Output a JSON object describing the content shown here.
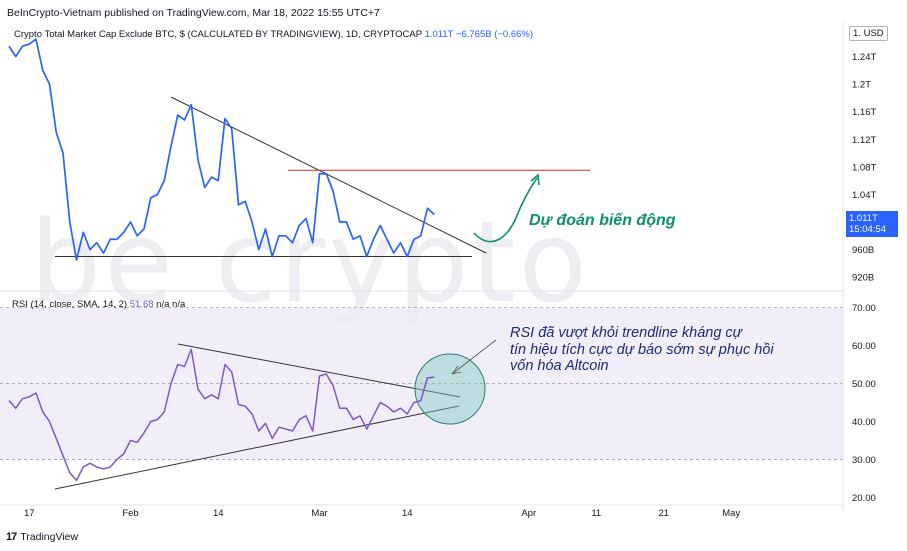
{
  "header": {
    "publisher_text": "BeInCrypto-Vietnam published on TradingView.com, Mar 18, 2022 15:55 UTC+7"
  },
  "main_legend": {
    "title": "Crypto Total Market Cap Exclude BTC, $ (CALCULATED BY TRADINGVIEW), 1D, CRYPTOCAP",
    "last_value": "1.011T",
    "change": "−6.765B (−0.66%)"
  },
  "currency_box": "USD",
  "price_axis_top_label": "1.",
  "price_tag": {
    "value": "1.011T",
    "countdown": "15:04:54"
  },
  "rsi_legend": {
    "label": "RSI (14, close, SMA, 14, 2)",
    "value": "51.68",
    "na1": "n/a",
    "na2": "n/a"
  },
  "watermark": "be  crypto",
  "annotations": {
    "forecast": "Dự đoán biến động",
    "rsi_line1": "RSI đã vượt khỏi trendline kháng cự",
    "rsi_line2": "tín hiệu tích cực dự báo sớm sự phục hồi",
    "rsi_line3": "vốn hóa Altcoin"
  },
  "footer": {
    "brand": "TradingView",
    "logo_glyph": "17"
  },
  "colors": {
    "price_line": "#2962ff",
    "rsi_line": "#7e57c2",
    "rsi_band_fill": "#ede7f6",
    "resistance_line": "#d32f2f",
    "trendline": "#333333",
    "forecast_arrow": "#0e8f6f"
  },
  "chart_data": [
    {
      "type": "line",
      "title": "Crypto Total Market Cap Exclude BTC, $ (CALCULATED BY TRADINGVIEW), 1D, CRYPTOCAP",
      "y_tick_labels": [
        "1.24T",
        "1.2T",
        "1.16T",
        "1.12T",
        "1.08T",
        "1.04T",
        "960B",
        "920B"
      ],
      "y_ticks": [
        1.24,
        1.2,
        1.16,
        1.12,
        1.08,
        1.04,
        0.96,
        0.92
      ],
      "ylim": [
        0.9,
        1.29
      ],
      "x_tick_labels": [
        "17",
        "Feb",
        "14",
        "Mar",
        "14",
        "Apr",
        "11",
        "21",
        "May"
      ],
      "grid": false,
      "series": [
        {
          "values_units": "trillion USD",
          "dates": [
            "2022-01-14",
            "2022-01-15",
            "2022-01-16",
            "2022-01-17",
            "2022-01-18",
            "2022-01-19",
            "2022-01-20",
            "2022-01-21",
            "2022-01-22",
            "2022-01-23",
            "2022-01-24",
            "2022-01-25",
            "2022-01-26",
            "2022-01-27",
            "2022-01-28",
            "2022-01-29",
            "2022-01-30",
            "2022-01-31",
            "2022-02-01",
            "2022-02-02",
            "2022-02-03",
            "2022-02-04",
            "2022-02-05",
            "2022-02-06",
            "2022-02-07",
            "2022-02-08",
            "2022-02-09",
            "2022-02-10",
            "2022-02-11",
            "2022-02-12",
            "2022-02-13",
            "2022-02-14",
            "2022-02-15",
            "2022-02-16",
            "2022-02-17",
            "2022-02-18",
            "2022-02-19",
            "2022-02-20",
            "2022-02-21",
            "2022-02-22",
            "2022-02-23",
            "2022-02-24",
            "2022-02-25",
            "2022-02-26",
            "2022-02-27",
            "2022-02-28",
            "2022-03-01",
            "2022-03-02",
            "2022-03-03",
            "2022-03-04",
            "2022-03-05",
            "2022-03-06",
            "2022-03-07",
            "2022-03-08",
            "2022-03-09",
            "2022-03-10",
            "2022-03-11",
            "2022-03-12",
            "2022-03-13",
            "2022-03-14",
            "2022-03-15",
            "2022-03-16",
            "2022-03-17",
            "2022-03-18"
          ],
          "values": [
            1.255,
            1.24,
            1.255,
            1.258,
            1.265,
            1.22,
            1.2,
            1.13,
            1.1,
            1.0,
            0.945,
            0.985,
            0.96,
            0.97,
            0.955,
            0.975,
            0.975,
            0.985,
            1.0,
            0.98,
            0.99,
            1.035,
            1.04,
            1.06,
            1.11,
            1.155,
            1.148,
            1.17,
            1.09,
            1.05,
            1.065,
            1.06,
            1.15,
            1.135,
            1.025,
            1.03,
            1.0,
            0.96,
            0.99,
            0.95,
            0.98,
            0.98,
            0.97,
            0.995,
            1.005,
            0.97,
            1.07,
            1.07,
            1.045,
            1.0,
            1.0,
            0.975,
            0.98,
            0.95,
            0.975,
            0.995,
            0.975,
            0.955,
            0.97,
            0.95,
            0.975,
            0.98,
            1.02,
            1.011
          ]
        }
      ],
      "resistance_level": 1.075,
      "support_level": 0.95
    },
    {
      "type": "line",
      "title": "RSI (14, close, SMA, 14, 2)",
      "y_tick_labels": [
        "70.00",
        "60.00",
        "50.00",
        "40.00",
        "30.00",
        "20.00"
      ],
      "y_ticks": [
        70,
        60,
        50,
        40,
        30,
        20
      ],
      "ylim": [
        18,
        72
      ],
      "band": [
        30,
        70
      ],
      "midline": 50,
      "grid": false,
      "series": [
        {
          "name": "RSI",
          "dates": [
            "2022-01-14",
            "2022-01-15",
            "2022-01-16",
            "2022-01-17",
            "2022-01-18",
            "2022-01-19",
            "2022-01-20",
            "2022-01-21",
            "2022-01-22",
            "2022-01-23",
            "2022-01-24",
            "2022-01-25",
            "2022-01-26",
            "2022-01-27",
            "2022-01-28",
            "2022-01-29",
            "2022-01-30",
            "2022-01-31",
            "2022-02-01",
            "2022-02-02",
            "2022-02-03",
            "2022-02-04",
            "2022-02-05",
            "2022-02-06",
            "2022-02-07",
            "2022-02-08",
            "2022-02-09",
            "2022-02-10",
            "2022-02-11",
            "2022-02-12",
            "2022-02-13",
            "2022-02-14",
            "2022-02-15",
            "2022-02-16",
            "2022-02-17",
            "2022-02-18",
            "2022-02-19",
            "2022-02-20",
            "2022-02-21",
            "2022-02-22",
            "2022-02-23",
            "2022-02-24",
            "2022-02-25",
            "2022-02-26",
            "2022-02-27",
            "2022-02-28",
            "2022-03-01",
            "2022-03-02",
            "2022-03-03",
            "2022-03-04",
            "2022-03-05",
            "2022-03-06",
            "2022-03-07",
            "2022-03-08",
            "2022-03-09",
            "2022-03-10",
            "2022-03-11",
            "2022-03-12",
            "2022-03-13",
            "2022-03-14",
            "2022-03-15",
            "2022-03-16",
            "2022-03-17",
            "2022-03-18"
          ],
          "values": [
            45.5,
            43.5,
            46,
            46.5,
            47.5,
            42.5,
            40,
            35.5,
            31,
            26.5,
            24.5,
            28,
            29,
            28,
            27.5,
            28,
            30,
            31.5,
            35,
            34.5,
            37,
            40,
            40.5,
            42.5,
            50,
            55,
            54.5,
            59,
            48.5,
            46,
            47,
            46,
            55,
            53,
            44.5,
            44,
            42,
            37.5,
            39.5,
            35.5,
            38.5,
            38,
            37.5,
            40.5,
            41.5,
            37.5,
            52,
            52.5,
            49.5,
            43.5,
            43.5,
            40.5,
            41.5,
            38,
            41.5,
            45,
            44,
            42.5,
            43.5,
            42,
            45,
            45.5,
            51.5,
            51.68
          ]
        }
      ]
    }
  ]
}
